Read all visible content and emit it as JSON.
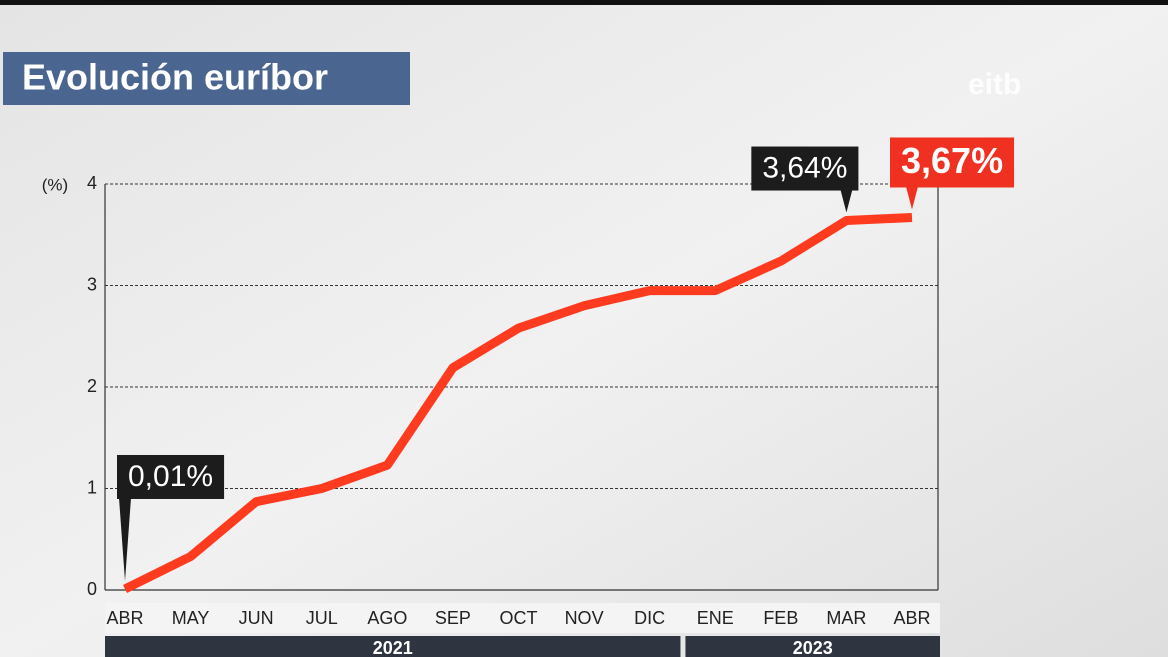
{
  "chart_data": {
    "type": "line",
    "title": "Evolución euríbor",
    "logo": "eitb",
    "y_label": "(%)",
    "categories": [
      "ABR",
      "MAY",
      "JUN",
      "JUL",
      "AGO",
      "SEP",
      "OCT",
      "NOV",
      "DIC",
      "ENE",
      "FEB",
      "MAR",
      "ABR"
    ],
    "series": [
      {
        "name": "Euríbor",
        "color": "#ff3b1f",
        "values": [
          0.01,
          0.33,
          0.87,
          1.0,
          1.23,
          2.19,
          2.58,
          2.8,
          2.95,
          2.95,
          3.24,
          3.64,
          3.67
        ],
        "value_labels": [
          "0,01%",
          null,
          null,
          null,
          null,
          null,
          null,
          null,
          null,
          null,
          null,
          "3,64%",
          "3,67%"
        ],
        "value_label_colors": [
          "#1c1c1c",
          null,
          null,
          null,
          null,
          null,
          null,
          null,
          null,
          null,
          null,
          "#1c1c1c",
          "#f03020"
        ]
      }
    ],
    "years": [
      {
        "label": "2021",
        "start": 0,
        "end": 8
      },
      {
        "label": "2023",
        "start": 9,
        "end": 12
      }
    ],
    "ylim": [
      0,
      4
    ],
    "yticks": [
      0,
      1,
      2,
      3,
      4
    ],
    "grid": true
  }
}
